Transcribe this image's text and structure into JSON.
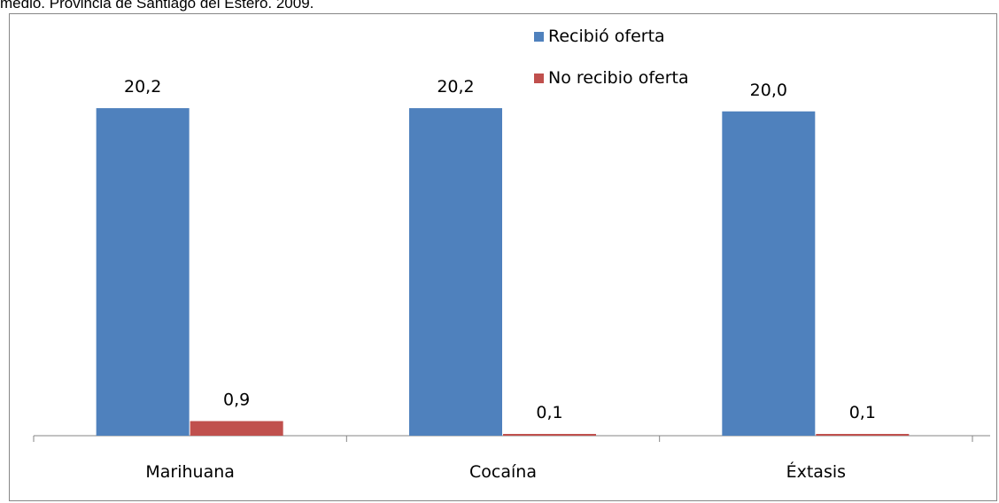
{
  "caption": "medio. Provincia de Santiago del Estero. 2009.",
  "colors": {
    "series_1": "#4F81BD",
    "series_2": "#C0504D",
    "axis": "#868686",
    "frame": "#868686"
  },
  "chart_data": {
    "type": "bar",
    "categories": [
      "Marihuana",
      "Cocaína",
      "Éxtasis"
    ],
    "series": [
      {
        "name": "Recibió oferta",
        "values": [
          20.2,
          20.2,
          20.0
        ],
        "labels": [
          "20,2",
          "20,2",
          "20,0"
        ]
      },
      {
        "name": "No recibio oferta",
        "values": [
          0.9,
          0.1,
          0.1
        ],
        "labels": [
          "0,9",
          "0,1",
          "0,1"
        ]
      }
    ],
    "title": "",
    "xlabel": "",
    "ylabel": "",
    "ylim": [
      0,
      22.5
    ],
    "grid": false,
    "legend_position": "top-right"
  }
}
